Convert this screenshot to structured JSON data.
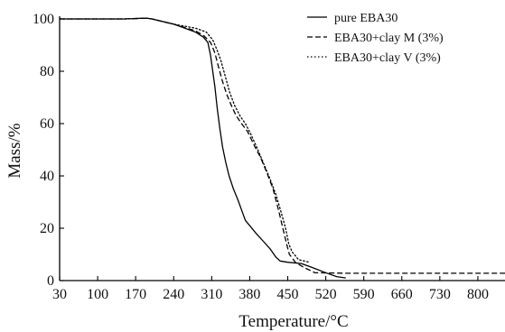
{
  "chart_data": {
    "type": "line",
    "xlabel": "Temperature/°C",
    "ylabel": "Mass/%",
    "xlim": [
      30,
      850
    ],
    "ylim": [
      0,
      100
    ],
    "x_ticks": [
      30,
      100,
      170,
      240,
      310,
      380,
      450,
      520,
      590,
      660,
      730,
      800
    ],
    "y_ticks": [
      0,
      20,
      40,
      60,
      80,
      100
    ],
    "grid": false,
    "legend_position": "top-right",
    "series": [
      {
        "name": "pure EBA30",
        "dash": "solid",
        "x": [
          30,
          150,
          190,
          200,
          240,
          280,
          295,
          303,
          308,
          312,
          316,
          320,
          325,
          330,
          336,
          342,
          350,
          358,
          365,
          372,
          380,
          392,
          405,
          418,
          428,
          436,
          450,
          475,
          495,
          520,
          540,
          557
        ],
        "y": [
          100,
          100,
          100.3,
          100,
          98,
          95,
          93,
          91,
          86,
          80,
          74,
          66,
          58,
          51,
          45,
          40,
          35,
          31,
          27,
          23,
          21,
          18,
          15,
          12,
          9,
          7.5,
          7,
          6.5,
          5,
          3,
          1.5,
          1
        ]
      },
      {
        "name": "EBA30+clay M (3%)",
        "dash": "dashed",
        "x": [
          30,
          150,
          190,
          200,
          240,
          280,
          296,
          308,
          316,
          322,
          330,
          338,
          346,
          355,
          365,
          376,
          390,
          400,
          412,
          423,
          433,
          441,
          448,
          453,
          457,
          464,
          480,
          500,
          560,
          700,
          860
        ],
        "y": [
          100,
          100,
          100.3,
          100,
          98,
          95.5,
          93.5,
          91,
          87,
          82,
          76,
          71,
          67,
          63,
          60,
          57,
          51,
          47,
          41,
          35,
          27,
          20,
          14,
          10,
          9,
          7,
          5,
          3,
          2.8,
          2.8,
          2.8
        ]
      },
      {
        "name": "EBA30+clay V (3%)",
        "dash": "dotted",
        "x": [
          30,
          150,
          190,
          200,
          240,
          280,
          300,
          312,
          320,
          327,
          335,
          343,
          352,
          362,
          372,
          382,
          393,
          405,
          417,
          428,
          438,
          446,
          452,
          458,
          470,
          490
        ],
        "y": [
          100,
          100,
          100.3,
          100,
          98,
          96.5,
          95,
          92,
          88,
          84,
          78,
          72,
          67,
          63,
          60,
          56,
          51,
          45,
          39,
          33,
          26,
          20,
          14,
          11,
          8,
          7
        ]
      }
    ]
  }
}
